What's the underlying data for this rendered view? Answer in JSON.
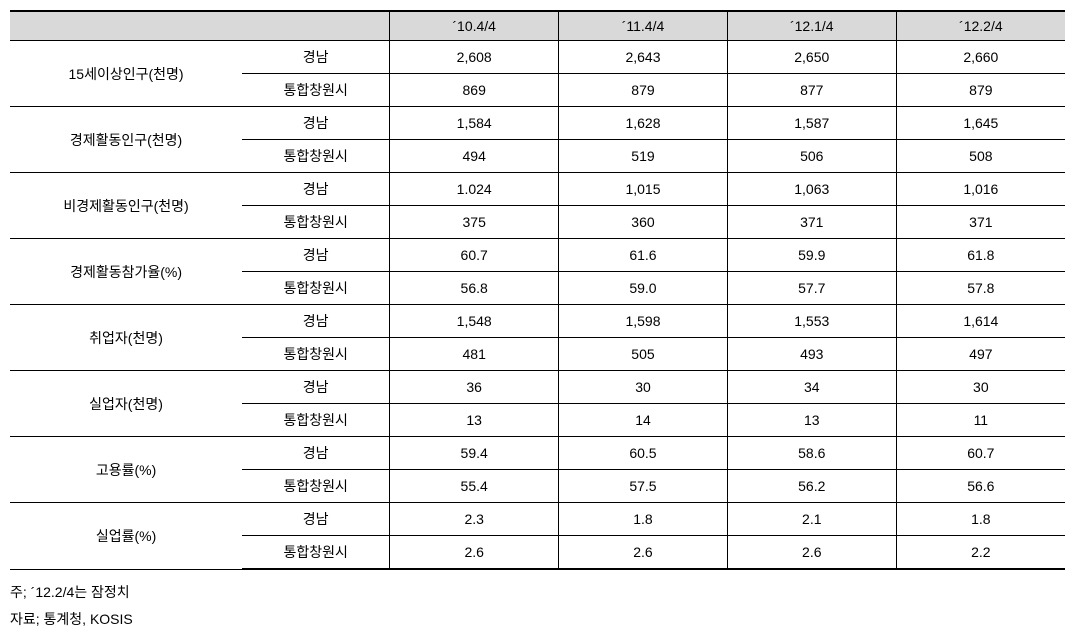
{
  "table": {
    "periods": [
      "´10.4/4",
      "´11.4/4",
      "´12.1/4",
      "´12.2/4"
    ],
    "indicators": [
      {
        "label": "15세이상인구(천명)",
        "rows": [
          {
            "region": "경남",
            "values": [
              "2,608",
              "2,643",
              "2,650",
              "2,660"
            ]
          },
          {
            "region": "통합창원시",
            "values": [
              "869",
              "879",
              "877",
              "879"
            ]
          }
        ]
      },
      {
        "label": "경제활동인구(천명)",
        "rows": [
          {
            "region": "경남",
            "values": [
              "1,584",
              "1,628",
              "1,587",
              "1,645"
            ]
          },
          {
            "region": "통합창원시",
            "values": [
              "494",
              "519",
              "506",
              "508"
            ]
          }
        ]
      },
      {
        "label": "비경제활동인구(천명)",
        "rows": [
          {
            "region": "경남",
            "values": [
              "1.024",
              "1,015",
              "1,063",
              "1,016"
            ]
          },
          {
            "region": "통합창원시",
            "values": [
              "375",
              "360",
              "371",
              "371"
            ]
          }
        ]
      },
      {
        "label": "경제활동참가율(%)",
        "rows": [
          {
            "region": "경남",
            "values": [
              "60.7",
              "61.6",
              "59.9",
              "61.8"
            ]
          },
          {
            "region": "통합창원시",
            "values": [
              "56.8",
              "59.0",
              "57.7",
              "57.8"
            ]
          }
        ]
      },
      {
        "label": "취업자(천명)",
        "rows": [
          {
            "region": "경남",
            "values": [
              "1,548",
              "1,598",
              "1,553",
              "1,614"
            ]
          },
          {
            "region": "통합창원시",
            "values": [
              "481",
              "505",
              "493",
              "497"
            ]
          }
        ]
      },
      {
        "label": "실업자(천명)",
        "rows": [
          {
            "region": "경남",
            "values": [
              "36",
              "30",
              "34",
              "30"
            ]
          },
          {
            "region": "통합창원시",
            "values": [
              "13",
              "14",
              "13",
              "11"
            ]
          }
        ]
      },
      {
        "label": "고용률(%)",
        "rows": [
          {
            "region": "경남",
            "values": [
              "59.4",
              "60.5",
              "58.6",
              "60.7"
            ]
          },
          {
            "region": "통합창원시",
            "values": [
              "55.4",
              "57.5",
              "56.2",
              "56.6"
            ]
          }
        ]
      },
      {
        "label": "실업률(%)",
        "rows": [
          {
            "region": "경남",
            "values": [
              "2.3",
              "1.8",
              "2.1",
              "1.8"
            ]
          },
          {
            "region": "통합창원시",
            "values": [
              "2.6",
              "2.6",
              "2.6",
              "2.2"
            ]
          }
        ]
      }
    ]
  },
  "footnotes": {
    "note1": "주; ´12.2/4는 잠정치",
    "note2": "자료; 통계청, KOSIS"
  },
  "styles": {
    "header_bg": "#d9d9d9",
    "border_color": "#000000",
    "font_size_body": 14,
    "font_family": "Malgun Gothic"
  }
}
